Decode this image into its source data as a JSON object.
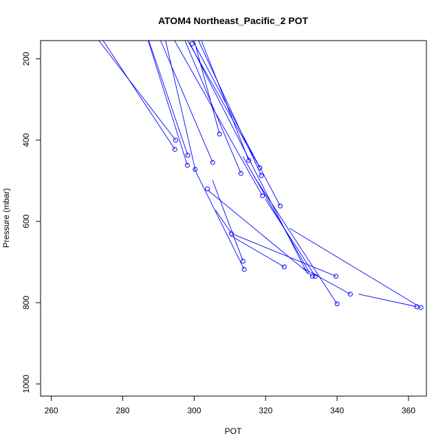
{
  "chart_data": {
    "type": "line",
    "title": "ATOM4 Northeast_Pacific_2 POT",
    "xlabel": "POT",
    "ylabel": "Pressure (mbar)",
    "xlim": [
      257,
      365
    ],
    "ylim": [
      1030,
      155
    ],
    "y_reversed": true,
    "x_ticks": [
      260,
      280,
      300,
      320,
      340,
      360
    ],
    "y_ticks": [
      200,
      400,
      600,
      800,
      1000
    ],
    "grid": false,
    "legend": "none",
    "line_color": "#0000ff",
    "marker": "open-circle",
    "points": [
      {
        "x": 299.4,
        "y": 163
      },
      {
        "x": 307.1,
        "y": 385
      },
      {
        "x": 294.8,
        "y": 400
      },
      {
        "x": 294.6,
        "y": 423
      },
      {
        "x": 298.2,
        "y": 437
      },
      {
        "x": 305.2,
        "y": 455
      },
      {
        "x": 315.3,
        "y": 450
      },
      {
        "x": 298.1,
        "y": 462
      },
      {
        "x": 300.3,
        "y": 472
      },
      {
        "x": 318.4,
        "y": 468
      },
      {
        "x": 313.1,
        "y": 482
      },
      {
        "x": 318.8,
        "y": 487
      },
      {
        "x": 303.7,
        "y": 520
      },
      {
        "x": 319.1,
        "y": 537
      },
      {
        "x": 324.1,
        "y": 562
      },
      {
        "x": 310.4,
        "y": 630
      },
      {
        "x": 313.7,
        "y": 698
      },
      {
        "x": 325.2,
        "y": 712
      },
      {
        "x": 314.0,
        "y": 718
      },
      {
        "x": 333.1,
        "y": 735
      },
      {
        "x": 333.9,
        "y": 735
      },
      {
        "x": 339.7,
        "y": 735
      },
      {
        "x": 343.7,
        "y": 779
      },
      {
        "x": 340.0,
        "y": 803
      },
      {
        "x": 362.3,
        "y": 810
      },
      {
        "x": 363.5,
        "y": 812
      }
    ],
    "segments": [
      [
        [
          300.0,
          155
        ],
        [
          307.1,
          385
        ]
      ],
      [
        [
          273.3,
          155
        ],
        [
          294.8,
          400
        ]
      ],
      [
        [
          274.5,
          155
        ],
        [
          294.6,
          423
        ]
      ],
      [
        [
          287.3,
          155
        ],
        [
          298.2,
          437
        ]
      ],
      [
        [
          290.6,
          155
        ],
        [
          305.2,
          455
        ]
      ],
      [
        [
          302.0,
          155
        ],
        [
          315.3,
          450
        ]
      ],
      [
        [
          287.1,
          155
        ],
        [
          298.1,
          462
        ]
      ],
      [
        [
          292.0,
          155
        ],
        [
          300.3,
          472
        ]
      ],
      [
        [
          298.2,
          155
        ],
        [
          318.4,
          468
        ]
      ],
      [
        [
          297.4,
          155
        ],
        [
          313.1,
          482
        ]
      ],
      [
        [
          301.2,
          155
        ],
        [
          318.8,
          487
        ]
      ],
      [
        [
          294.5,
          155
        ],
        [
          319.1,
          537
        ]
      ],
      [
        [
          299.6,
          155
        ],
        [
          324.1,
          562
        ]
      ],
      [
        [
          306.0,
          572
        ],
        [
          310.4,
          630
        ]
      ],
      [
        [
          305.1,
          498
        ],
        [
          313.7,
          698
        ]
      ],
      [
        [
          310.2,
          635
        ],
        [
          325.2,
          712
        ]
      ],
      [
        [
          300.0,
          470
        ],
        [
          314.0,
          718
        ]
      ],
      [
        [
          303.8,
          523
        ],
        [
          333.1,
          735
        ]
      ],
      [
        [
          319.9,
          545
        ],
        [
          333.9,
          735
        ]
      ],
      [
        [
          311.0,
          632
        ],
        [
          339.7,
          735
        ]
      ],
      [
        [
          316.6,
          487
        ],
        [
          340.0,
          803
        ]
      ],
      [
        [
          330.5,
          715
        ],
        [
          343.7,
          779
        ]
      ],
      [
        [
          346.0,
          779
        ],
        [
          362.3,
          810
        ]
      ],
      [
        [
          326.7,
          617
        ],
        [
          363.5,
          812
        ]
      ],
      [
        [
          298.7,
          160
        ],
        [
          331.8,
          730
        ]
      ],
      [
        [
          313.6,
          440
        ],
        [
          332.2,
          725
        ]
      ]
    ]
  }
}
